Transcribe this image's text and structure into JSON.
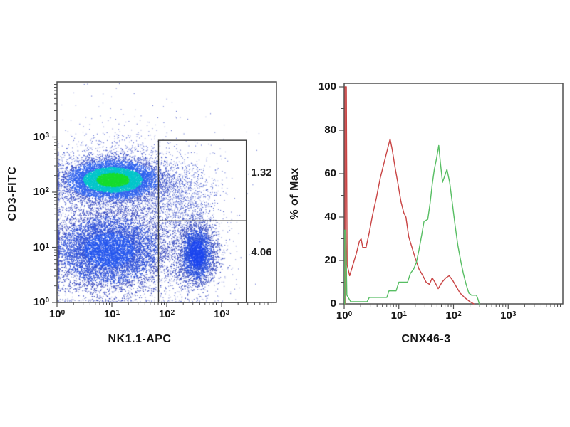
{
  "figure": {
    "background": "#ffffff",
    "frame_color": "#4f4f4f",
    "text_color": "#151515"
  },
  "chart_data": [
    {
      "type": "scatter",
      "flavor": "flow-cytometry-density-dot-plot",
      "title": "",
      "xlabel": "NK1.1-APC",
      "ylabel": "CD3-FITC",
      "x_scale": "log",
      "y_scale": "log",
      "log_base": 10,
      "x_tick_exponents": [
        0,
        1,
        2,
        3
      ],
      "y_tick_exponents": [
        0,
        1,
        2,
        3
      ],
      "x_range_decades": [
        0,
        4
      ],
      "y_range_decades": [
        0,
        4
      ],
      "grid": false,
      "gates": [
        {
          "label": "1.32",
          "x_decades": [
            1.85,
            3.45
          ],
          "y_decades": [
            1.48,
            2.94
          ]
        },
        {
          "label": "4.06",
          "x_decades": [
            1.85,
            3.45
          ],
          "y_decades": [
            0.0,
            1.48
          ]
        }
      ],
      "populations": [
        {
          "name": "background scatter",
          "cx": 1.2,
          "cy": 1.6,
          "sx": 1.05,
          "sy": 1.05,
          "count": 900,
          "dot": 1,
          "colors": [
            [
              99,
              "#4A5AC8"
            ]
          ]
        },
        {
          "name": "mid scatter",
          "cx": 1.9,
          "cy": 1.55,
          "sx": 0.5,
          "sy": 0.5,
          "count": 800,
          "dot": 1,
          "colors": [
            [
              99,
              "#4256C8"
            ]
          ]
        },
        {
          "name": "NK1.1+ CD3+ scatter (upper gate)",
          "cx": 2.15,
          "cy": 2.05,
          "sx": 0.38,
          "sy": 0.3,
          "count": 950,
          "dot": 1,
          "colors": [
            [
              99,
              "#3D55CC"
            ]
          ]
        },
        {
          "name": "CD3+ halo",
          "cx": 1.0,
          "cy": 2.24,
          "sx": 0.58,
          "sy": 0.34,
          "count": 2400,
          "dot": 1,
          "clamp_low_x": true,
          "colors": [
            [
              1.2,
              "#2E5CE8"
            ],
            [
              99,
              "#4154CC"
            ]
          ]
        },
        {
          "name": "double-negative halo",
          "cx": 1.0,
          "cy": 1.0,
          "sx": 0.75,
          "sy": 0.55,
          "count": 2300,
          "dot": 1,
          "clamp_low_x": true,
          "colors": [
            [
              99,
              "#4053C4"
            ]
          ]
        },
        {
          "name": "NK halo",
          "cx": 2.55,
          "cy": 0.9,
          "sx": 0.3,
          "sy": 0.45,
          "count": 650,
          "dot": 1,
          "colors": [
            [
              99,
              "#4355C6"
            ]
          ]
        },
        {
          "name": "double-negative lymphocytes",
          "cx": 0.95,
          "cy": 0.95,
          "sx": 0.5,
          "sy": 0.34,
          "count": 6200,
          "dot": 1.4,
          "clamp_low_x": true,
          "colors": [
            [
              0.9,
              "#2456EE"
            ],
            [
              1.8,
              "#2E50D8"
            ],
            [
              99,
              "#3A49BE"
            ]
          ]
        },
        {
          "name": "NK1.1+ NK cells (lower gate)",
          "cx": 2.55,
          "cy": 0.88,
          "sx": 0.16,
          "sy": 0.27,
          "count": 2600,
          "dot": 1.4,
          "colors": [
            [
              0.9,
              "#1C46EE"
            ],
            [
              1.7,
              "#2A50DC"
            ],
            [
              99,
              "#3A4EC0"
            ]
          ]
        },
        {
          "name": "CD3+ T cells (dense green core)",
          "cx": 1.02,
          "cy": 2.22,
          "sx": 0.4,
          "sy": 0.17,
          "count": 7000,
          "dot": 1.4,
          "clamp_low_x": true,
          "colors": [
            [
              0.75,
              "#17DC2E"
            ],
            [
              1.35,
              "#00C6C9"
            ],
            [
              2.1,
              "#2E62EE"
            ],
            [
              99,
              "#3A50C8"
            ]
          ]
        }
      ]
    },
    {
      "type": "line",
      "flavor": "flow-cytometry-histogram-overlay",
      "title": "",
      "xlabel": "CNX46-3",
      "ylabel": "% of Max",
      "x_scale": "log",
      "log_base": 10,
      "x_tick_exponents": [
        0,
        1,
        2,
        3
      ],
      "x_range_decades": [
        0,
        4
      ],
      "y_ticks": [
        0,
        20,
        40,
        60,
        80,
        100
      ],
      "ylim": [
        0,
        100
      ],
      "grid": false,
      "legend": "none",
      "series": [
        {
          "name": "control (red)",
          "color": "#C94444",
          "points": [
            [
              0.015,
              0
            ],
            [
              0.015,
              100
            ],
            [
              0.04,
              100
            ],
            [
              0.055,
              18
            ],
            [
              0.1,
              13
            ],
            [
              0.16,
              18
            ],
            [
              0.22,
              23
            ],
            [
              0.28,
              29
            ],
            [
              0.31,
              30
            ],
            [
              0.34,
              26
            ],
            [
              0.4,
              26
            ],
            [
              0.46,
              33
            ],
            [
              0.52,
              41
            ],
            [
              0.59,
              49
            ],
            [
              0.66,
              58
            ],
            [
              0.73,
              65
            ],
            [
              0.79,
              71
            ],
            [
              0.84,
              76
            ],
            [
              0.88,
              71
            ],
            [
              0.93,
              63
            ],
            [
              0.98,
              56
            ],
            [
              1.04,
              47
            ],
            [
              1.09,
              42
            ],
            [
              1.13,
              40
            ],
            [
              1.18,
              31
            ],
            [
              1.24,
              26
            ],
            [
              1.3,
              21
            ],
            [
              1.37,
              16
            ],
            [
              1.44,
              13
            ],
            [
              1.5,
              10
            ],
            [
              1.56,
              9
            ],
            [
              1.61,
              12
            ],
            [
              1.66,
              10
            ],
            [
              1.72,
              7
            ],
            [
              1.79,
              10
            ],
            [
              1.86,
              12
            ],
            [
              1.92,
              13
            ],
            [
              1.98,
              11
            ],
            [
              2.05,
              8
            ],
            [
              2.12,
              5
            ],
            [
              2.2,
              3
            ],
            [
              2.3,
              1
            ],
            [
              2.37,
              0
            ]
          ]
        },
        {
          "name": "stained (green)",
          "color": "#57BE63",
          "points": [
            [
              0.01,
              0
            ],
            [
              0.01,
              34
            ],
            [
              0.03,
              34
            ],
            [
              0.05,
              4
            ],
            [
              0.12,
              1
            ],
            [
              0.42,
              1
            ],
            [
              0.46,
              3
            ],
            [
              0.78,
              3
            ],
            [
              0.82,
              6
            ],
            [
              0.95,
              6
            ],
            [
              1.0,
              10
            ],
            [
              1.16,
              10
            ],
            [
              1.21,
              14
            ],
            [
              1.27,
              16
            ],
            [
              1.32,
              19
            ],
            [
              1.37,
              25
            ],
            [
              1.42,
              32
            ],
            [
              1.46,
              38
            ],
            [
              1.53,
              39
            ],
            [
              1.57,
              46
            ],
            [
              1.61,
              55
            ],
            [
              1.65,
              62
            ],
            [
              1.69,
              67
            ],
            [
              1.73,
              73
            ],
            [
              1.76,
              65
            ],
            [
              1.8,
              56
            ],
            [
              1.84,
              59
            ],
            [
              1.88,
              62
            ],
            [
              1.93,
              56
            ],
            [
              1.98,
              46
            ],
            [
              2.03,
              36
            ],
            [
              2.08,
              27
            ],
            [
              2.13,
              20
            ],
            [
              2.18,
              14
            ],
            [
              2.23,
              9
            ],
            [
              2.28,
              5
            ],
            [
              2.33,
              4
            ],
            [
              2.42,
              4
            ],
            [
              2.45,
              2
            ],
            [
              2.47,
              0
            ]
          ]
        }
      ]
    }
  ]
}
